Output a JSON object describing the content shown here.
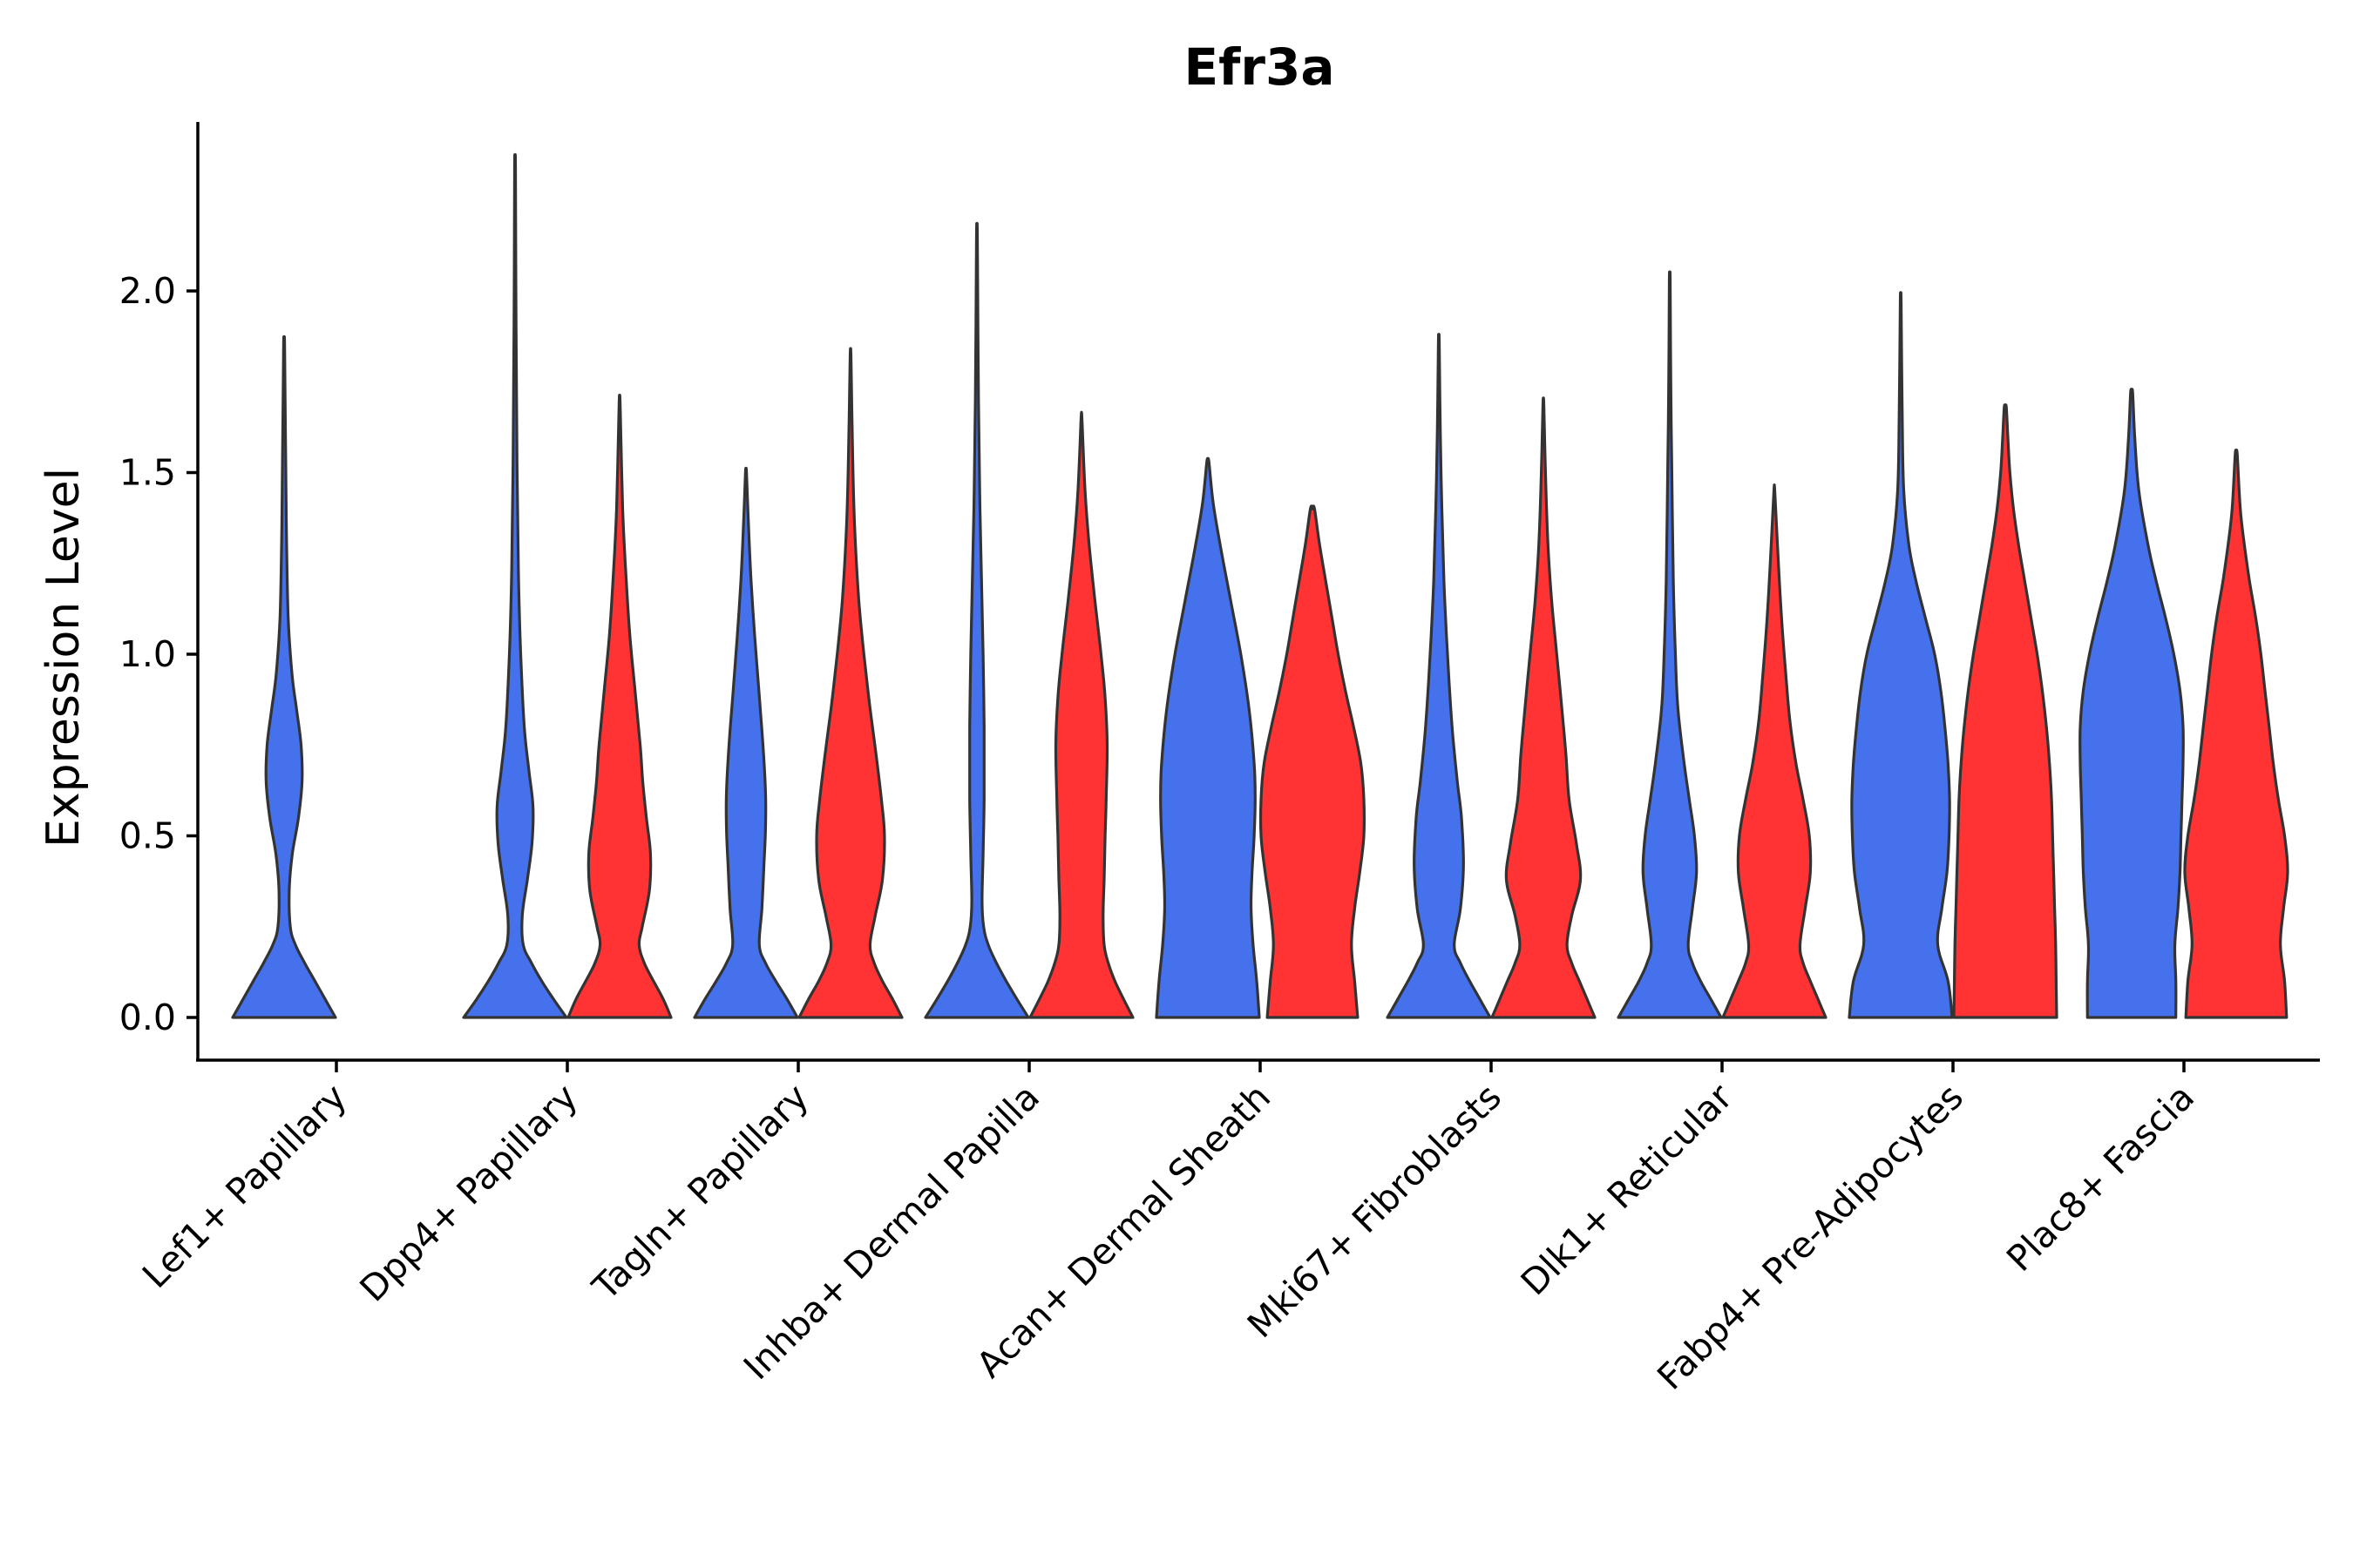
{
  "chart_data": {
    "type": "violin",
    "title": "Efr3a",
    "xlabel": "",
    "ylabel": "Expression Level",
    "ylim": [
      -0.12,
      2.45
    ],
    "yticks": [
      "0.0",
      "0.5",
      "1.0",
      "1.5",
      "2.0"
    ],
    "grid": false,
    "legend": "none",
    "categories": [
      "Lef1+ Papillary",
      "Dpp4+ Papillary",
      "Tagln+ Papillary",
      "Inhba+ Dermal Papilla",
      "Acan+ Dermal Sheath",
      "Mki67+ Fibroblasts",
      "Dlk1+ Reticular",
      "Fabp4+ Pre-Adipocytes",
      "Plac8+ Fascia"
    ],
    "series_colors": {
      "blue": "#4571EC",
      "red": "#FF3333"
    },
    "violins": [
      {
        "category": 0,
        "group": "blue",
        "max": 1.85,
        "profile": [
          [
            0,
            1.0
          ],
          [
            0.05,
            0.8
          ],
          [
            0.1,
            0.6
          ],
          [
            0.15,
            0.4
          ],
          [
            0.2,
            0.22
          ],
          [
            0.25,
            0.12
          ],
          [
            0.35,
            0.1
          ],
          [
            0.45,
            0.16
          ],
          [
            0.55,
            0.28
          ],
          [
            0.65,
            0.35
          ],
          [
            0.75,
            0.33
          ],
          [
            0.85,
            0.24
          ],
          [
            0.95,
            0.15
          ],
          [
            1.1,
            0.08
          ],
          [
            1.3,
            0.05
          ],
          [
            1.55,
            0.03
          ],
          [
            1.85,
            0.01
          ]
        ]
      },
      {
        "category": 1,
        "group": "blue",
        "max": 2.34,
        "profile": [
          [
            0,
            1.0
          ],
          [
            0.05,
            0.75
          ],
          [
            0.1,
            0.52
          ],
          [
            0.15,
            0.32
          ],
          [
            0.2,
            0.16
          ],
          [
            0.28,
            0.14
          ],
          [
            0.38,
            0.24
          ],
          [
            0.48,
            0.33
          ],
          [
            0.58,
            0.35
          ],
          [
            0.68,
            0.27
          ],
          [
            0.8,
            0.18
          ],
          [
            1.0,
            0.11
          ],
          [
            1.2,
            0.07
          ],
          [
            1.5,
            0.04
          ],
          [
            1.9,
            0.02
          ],
          [
            2.34,
            0.008
          ]
        ]
      },
      {
        "category": 1,
        "group": "red",
        "max": 1.69,
        "profile": [
          [
            0,
            1.0
          ],
          [
            0.05,
            0.85
          ],
          [
            0.1,
            0.66
          ],
          [
            0.15,
            0.48
          ],
          [
            0.2,
            0.38
          ],
          [
            0.25,
            0.44
          ],
          [
            0.35,
            0.58
          ],
          [
            0.45,
            0.6
          ],
          [
            0.55,
            0.52
          ],
          [
            0.65,
            0.45
          ],
          [
            0.75,
            0.4
          ],
          [
            0.9,
            0.3
          ],
          [
            1.05,
            0.2
          ],
          [
            1.2,
            0.13
          ],
          [
            1.4,
            0.06
          ],
          [
            1.69,
            0.01
          ]
        ]
      },
      {
        "category": 2,
        "group": "blue",
        "max": 1.5,
        "profile": [
          [
            0,
            1.0
          ],
          [
            0.05,
            0.8
          ],
          [
            0.1,
            0.58
          ],
          [
            0.15,
            0.38
          ],
          [
            0.2,
            0.26
          ],
          [
            0.3,
            0.31
          ],
          [
            0.42,
            0.35
          ],
          [
            0.52,
            0.38
          ],
          [
            0.62,
            0.38
          ],
          [
            0.75,
            0.33
          ],
          [
            0.9,
            0.25
          ],
          [
            1.05,
            0.17
          ],
          [
            1.2,
            0.1
          ],
          [
            1.35,
            0.05
          ],
          [
            1.5,
            0.01
          ]
        ]
      },
      {
        "category": 2,
        "group": "red",
        "max": 1.82,
        "profile": [
          [
            0,
            1.0
          ],
          [
            0.05,
            0.82
          ],
          [
            0.1,
            0.62
          ],
          [
            0.15,
            0.46
          ],
          [
            0.2,
            0.38
          ],
          [
            0.28,
            0.48
          ],
          [
            0.38,
            0.62
          ],
          [
            0.5,
            0.66
          ],
          [
            0.6,
            0.6
          ],
          [
            0.72,
            0.5
          ],
          [
            0.85,
            0.38
          ],
          [
            1.0,
            0.26
          ],
          [
            1.15,
            0.16
          ],
          [
            1.35,
            0.08
          ],
          [
            1.55,
            0.04
          ],
          [
            1.82,
            0.008
          ]
        ]
      },
      {
        "category": 3,
        "group": "blue",
        "max": 2.15,
        "profile": [
          [
            0,
            1.0
          ],
          [
            0.05,
            0.78
          ],
          [
            0.1,
            0.57
          ],
          [
            0.15,
            0.38
          ],
          [
            0.2,
            0.22
          ],
          [
            0.25,
            0.13
          ],
          [
            0.32,
            0.1
          ],
          [
            0.45,
            0.12
          ],
          [
            0.6,
            0.14
          ],
          [
            0.8,
            0.14
          ],
          [
            1.0,
            0.12
          ],
          [
            1.2,
            0.09
          ],
          [
            1.4,
            0.06
          ],
          [
            1.7,
            0.03
          ],
          [
            2.15,
            0.008
          ]
        ]
      },
      {
        "category": 3,
        "group": "red",
        "max": 1.65,
        "profile": [
          [
            0,
            1.0
          ],
          [
            0.05,
            0.82
          ],
          [
            0.1,
            0.65
          ],
          [
            0.15,
            0.52
          ],
          [
            0.2,
            0.44
          ],
          [
            0.28,
            0.42
          ],
          [
            0.38,
            0.44
          ],
          [
            0.5,
            0.46
          ],
          [
            0.6,
            0.48
          ],
          [
            0.75,
            0.5
          ],
          [
            0.88,
            0.46
          ],
          [
            1.0,
            0.38
          ],
          [
            1.15,
            0.26
          ],
          [
            1.3,
            0.15
          ],
          [
            1.45,
            0.07
          ],
          [
            1.65,
            0.008
          ]
        ]
      },
      {
        "category": 4,
        "group": "blue",
        "max": 1.53,
        "profile": [
          [
            0,
            1.0
          ],
          [
            0.1,
            0.95
          ],
          [
            0.2,
            0.88
          ],
          [
            0.3,
            0.84
          ],
          [
            0.4,
            0.86
          ],
          [
            0.5,
            0.9
          ],
          [
            0.6,
            0.92
          ],
          [
            0.7,
            0.9
          ],
          [
            0.85,
            0.8
          ],
          [
            1.0,
            0.64
          ],
          [
            1.15,
            0.44
          ],
          [
            1.3,
            0.24
          ],
          [
            1.42,
            0.1
          ],
          [
            1.53,
            0.02
          ]
        ]
      },
      {
        "category": 4,
        "group": "red",
        "max": 1.4,
        "profile": [
          [
            0,
            0.88
          ],
          [
            0.1,
            0.82
          ],
          [
            0.2,
            0.76
          ],
          [
            0.3,
            0.82
          ],
          [
            0.4,
            0.92
          ],
          [
            0.5,
            1.0
          ],
          [
            0.6,
            1.0
          ],
          [
            0.7,
            0.94
          ],
          [
            0.8,
            0.8
          ],
          [
            0.9,
            0.64
          ],
          [
            1.0,
            0.5
          ],
          [
            1.1,
            0.38
          ],
          [
            1.2,
            0.26
          ],
          [
            1.3,
            0.14
          ],
          [
            1.4,
            0.04
          ]
        ]
      },
      {
        "category": 5,
        "group": "blue",
        "max": 1.86,
        "profile": [
          [
            0,
            1.0
          ],
          [
            0.05,
            0.8
          ],
          [
            0.1,
            0.6
          ],
          [
            0.15,
            0.42
          ],
          [
            0.2,
            0.3
          ],
          [
            0.3,
            0.42
          ],
          [
            0.42,
            0.48
          ],
          [
            0.55,
            0.44
          ],
          [
            0.65,
            0.36
          ],
          [
            0.78,
            0.27
          ],
          [
            0.9,
            0.21
          ],
          [
            1.05,
            0.15
          ],
          [
            1.2,
            0.1
          ],
          [
            1.4,
            0.06
          ],
          [
            1.6,
            0.03
          ],
          [
            1.86,
            0.008
          ]
        ]
      },
      {
        "category": 5,
        "group": "red",
        "max": 1.69,
        "profile": [
          [
            0,
            1.0
          ],
          [
            0.05,
            0.85
          ],
          [
            0.1,
            0.7
          ],
          [
            0.15,
            0.55
          ],
          [
            0.2,
            0.46
          ],
          [
            0.28,
            0.55
          ],
          [
            0.38,
            0.72
          ],
          [
            0.48,
            0.64
          ],
          [
            0.6,
            0.5
          ],
          [
            0.72,
            0.44
          ],
          [
            0.85,
            0.36
          ],
          [
            1.0,
            0.26
          ],
          [
            1.15,
            0.16
          ],
          [
            1.3,
            0.09
          ],
          [
            1.5,
            0.04
          ],
          [
            1.69,
            0.008
          ]
        ]
      },
      {
        "category": 6,
        "group": "blue",
        "max": 2.03,
        "profile": [
          [
            0,
            1.0
          ],
          [
            0.05,
            0.8
          ],
          [
            0.1,
            0.6
          ],
          [
            0.15,
            0.44
          ],
          [
            0.2,
            0.36
          ],
          [
            0.3,
            0.44
          ],
          [
            0.4,
            0.52
          ],
          [
            0.5,
            0.48
          ],
          [
            0.6,
            0.38
          ],
          [
            0.7,
            0.28
          ],
          [
            0.85,
            0.16
          ],
          [
            1.0,
            0.11
          ],
          [
            1.2,
            0.07
          ],
          [
            1.5,
            0.04
          ],
          [
            1.75,
            0.02
          ],
          [
            2.03,
            0.008
          ]
        ]
      },
      {
        "category": 6,
        "group": "red",
        "max": 1.45,
        "profile": [
          [
            0,
            1.0
          ],
          [
            0.05,
            0.85
          ],
          [
            0.1,
            0.7
          ],
          [
            0.15,
            0.56
          ],
          [
            0.2,
            0.5
          ],
          [
            0.3,
            0.6
          ],
          [
            0.4,
            0.7
          ],
          [
            0.5,
            0.68
          ],
          [
            0.6,
            0.56
          ],
          [
            0.7,
            0.42
          ],
          [
            0.82,
            0.3
          ],
          [
            0.95,
            0.22
          ],
          [
            1.1,
            0.14
          ],
          [
            1.25,
            0.08
          ],
          [
            1.45,
            0.008
          ]
        ]
      },
      {
        "category": 7,
        "group": "blue",
        "max": 1.97,
        "profile": [
          [
            0,
            1.0
          ],
          [
            0.1,
            0.92
          ],
          [
            0.2,
            0.72
          ],
          [
            0.3,
            0.8
          ],
          [
            0.4,
            0.9
          ],
          [
            0.5,
            0.94
          ],
          [
            0.6,
            0.95
          ],
          [
            0.7,
            0.92
          ],
          [
            0.8,
            0.86
          ],
          [
            0.9,
            0.78
          ],
          [
            1.0,
            0.66
          ],
          [
            1.1,
            0.48
          ],
          [
            1.2,
            0.3
          ],
          [
            1.3,
            0.16
          ],
          [
            1.45,
            0.06
          ],
          [
            1.65,
            0.03
          ],
          [
            1.97,
            0.008
          ]
        ]
      },
      {
        "category": 7,
        "group": "red",
        "max": 1.68,
        "profile": [
          [
            0,
            1.0
          ],
          [
            0.1,
            0.99
          ],
          [
            0.2,
            0.98
          ],
          [
            0.3,
            0.96
          ],
          [
            0.4,
            0.94
          ],
          [
            0.5,
            0.92
          ],
          [
            0.6,
            0.9
          ],
          [
            0.7,
            0.86
          ],
          [
            0.8,
            0.8
          ],
          [
            0.9,
            0.72
          ],
          [
            1.0,
            0.62
          ],
          [
            1.1,
            0.5
          ],
          [
            1.2,
            0.38
          ],
          [
            1.3,
            0.26
          ],
          [
            1.4,
            0.16
          ],
          [
            1.5,
            0.09
          ],
          [
            1.6,
            0.05
          ],
          [
            1.68,
            0.02
          ]
        ]
      },
      {
        "category": 8,
        "group": "blue",
        "max": 1.72,
        "profile": [
          [
            0,
            0.86
          ],
          [
            0.1,
            0.86
          ],
          [
            0.2,
            0.84
          ],
          [
            0.3,
            0.9
          ],
          [
            0.4,
            0.94
          ],
          [
            0.5,
            0.96
          ],
          [
            0.6,
            0.98
          ],
          [
            0.7,
            1.0
          ],
          [
            0.8,
            1.0
          ],
          [
            0.9,
            0.94
          ],
          [
            1.0,
            0.82
          ],
          [
            1.1,
            0.66
          ],
          [
            1.2,
            0.48
          ],
          [
            1.3,
            0.32
          ],
          [
            1.45,
            0.14
          ],
          [
            1.6,
            0.06
          ],
          [
            1.72,
            0.02
          ]
        ]
      },
      {
        "category": 8,
        "group": "red",
        "max": 1.55,
        "profile": [
          [
            0,
            0.98
          ],
          [
            0.1,
            0.94
          ],
          [
            0.2,
            0.86
          ],
          [
            0.3,
            0.92
          ],
          [
            0.4,
            1.0
          ],
          [
            0.5,
            0.94
          ],
          [
            0.6,
            0.82
          ],
          [
            0.7,
            0.72
          ],
          [
            0.8,
            0.64
          ],
          [
            0.9,
            0.56
          ],
          [
            1.0,
            0.48
          ],
          [
            1.1,
            0.38
          ],
          [
            1.2,
            0.26
          ],
          [
            1.3,
            0.16
          ],
          [
            1.4,
            0.08
          ],
          [
            1.55,
            0.02
          ]
        ]
      }
    ]
  }
}
